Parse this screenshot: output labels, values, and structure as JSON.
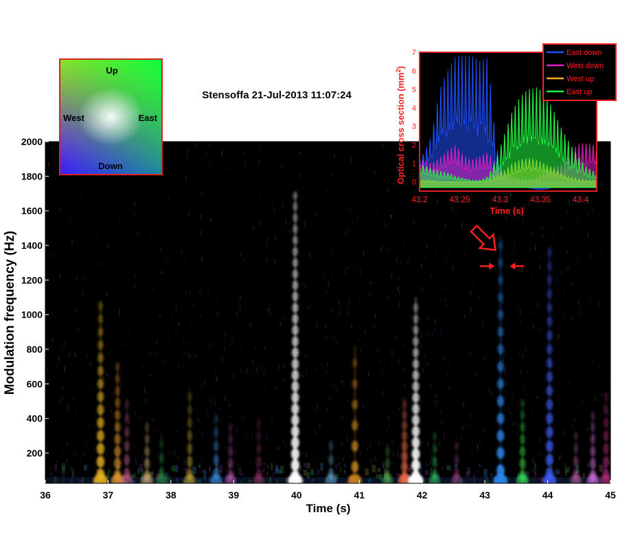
{
  "chart_data": [
    {
      "type": "heatmap",
      "title": "Stensoffa 21-Jul-2013 11:07:24",
      "xlabel": "Time (s)",
      "ylabel": "Modulation frequency (Hz)",
      "xlim": [
        36,
        45
      ],
      "ylim": [
        25,
        2000
      ],
      "xticks": [
        36,
        37,
        38,
        39,
        40,
        41,
        42,
        43,
        44,
        45
      ],
      "xtick_labels": [
        "36",
        "37",
        "38",
        "39",
        "40",
        "41",
        "42",
        "43",
        "44",
        "45"
      ],
      "yticks": [
        200,
        400,
        600,
        800,
        1000,
        1200,
        1400,
        1600,
        1800,
        2000
      ],
      "ytick_labels": [
        "200",
        "400",
        "600",
        "800",
        "1000",
        "1200",
        "1400",
        "1600",
        "1800",
        "2000"
      ],
      "background_color": "#000000",
      "features": [
        {
          "t": 36.88,
          "top": 1080,
          "color": "#e3b020",
          "i": 0.9,
          "harmonic": 75
        },
        {
          "t": 37.15,
          "top": 720,
          "color": "#f0a030",
          "i": 0.7,
          "harmonic": 70
        },
        {
          "t": 37.3,
          "top": 520,
          "color": "#e06aa0",
          "i": 0.5,
          "harmonic": 80
        },
        {
          "t": 37.62,
          "top": 380,
          "color": "#e0c080",
          "i": 0.55,
          "harmonic": 70
        },
        {
          "t": 37.85,
          "top": 320,
          "color": "#40d060",
          "i": 0.4,
          "harmonic": 85
        },
        {
          "t": 38.3,
          "top": 560,
          "color": "#f0d040",
          "i": 0.45,
          "harmonic": 75
        },
        {
          "t": 38.72,
          "top": 420,
          "color": "#40a0ff",
          "i": 0.55,
          "harmonic": 80
        },
        {
          "t": 38.95,
          "top": 360,
          "color": "#d060c0",
          "i": 0.45,
          "harmonic": 70
        },
        {
          "t": 39.4,
          "top": 380,
          "color": "#c04080",
          "i": 0.4,
          "harmonic": 75
        },
        {
          "t": 39.98,
          "top": 1700,
          "color": "#ffffff",
          "i": 0.95,
          "harmonic": 65
        },
        {
          "t": 40.55,
          "top": 280,
          "color": "#80d0ff",
          "i": 0.45,
          "harmonic": 80
        },
        {
          "t": 40.93,
          "top": 820,
          "color": "#f0a020",
          "i": 0.75,
          "harmonic": 120
        },
        {
          "t": 41.45,
          "top": 260,
          "color": "#60e060",
          "i": 0.4,
          "harmonic": 70
        },
        {
          "t": 41.72,
          "top": 520,
          "color": "#ff7050",
          "i": 0.7,
          "harmonic": 60
        },
        {
          "t": 41.9,
          "top": 1100,
          "color": "#ffffff",
          "i": 1.0,
          "harmonic": 65
        },
        {
          "t": 42.2,
          "top": 300,
          "color": "#40ff80",
          "i": 0.4,
          "harmonic": 75
        },
        {
          "t": 42.55,
          "top": 260,
          "color": "#e060c0",
          "i": 0.35,
          "harmonic": 80
        },
        {
          "t": 43.25,
          "top": 1450,
          "color": "#3090ff",
          "i": 0.85,
          "harmonic": 100
        },
        {
          "t": 43.6,
          "top": 500,
          "color": "#40ff60",
          "i": 0.55,
          "harmonic": 70
        },
        {
          "t": 44.03,
          "top": 1400,
          "color": "#4060ff",
          "i": 0.8,
          "harmonic": 80
        },
        {
          "t": 44.45,
          "top": 320,
          "color": "#e070c0",
          "i": 0.45,
          "harmonic": 75
        },
        {
          "t": 44.72,
          "top": 420,
          "color": "#f080ff",
          "i": 0.55,
          "harmonic": 70
        },
        {
          "t": 44.93,
          "top": 560,
          "color": "#c03080",
          "i": 0.6,
          "harmonic": 75
        }
      ],
      "annotations": [
        {
          "type": "arrow",
          "direction": "down-right",
          "at_t": 43.12,
          "at_f": 1390,
          "color": "#ff2020"
        },
        {
          "type": "arrow",
          "direction": "right",
          "at_t": 43.1,
          "at_f": 1280,
          "color": "#ff2020"
        },
        {
          "type": "arrow",
          "direction": "left",
          "at_t": 43.45,
          "at_f": 1280,
          "color": "#ff2020"
        }
      ]
    },
    {
      "type": "area",
      "title": "",
      "xlabel": "Time (s)",
      "ylabel": "Optical cross section (mm",
      "ylabel_superscript": "2",
      "ylabel_close": ")",
      "xlim": [
        43.2,
        43.42
      ],
      "ylim": [
        -0.5,
        7
      ],
      "xticks": [
        43.2,
        43.25,
        43.3,
        43.35,
        43.4
      ],
      "xtick_labels": [
        "43.2",
        "43.25",
        "43.3",
        "43.35",
        "43.4"
      ],
      "yticks": [
        0,
        1,
        2,
        3,
        4,
        5,
        6,
        7
      ],
      "ytick_labels": [
        "0",
        "1",
        "2",
        "3",
        "4",
        "5",
        "6",
        "7"
      ],
      "label_color": "#ff2020",
      "legend": "top-right",
      "series": [
        {
          "name": "East down",
          "color": "#2050ff",
          "x": [
            43.205,
            43.215,
            43.225,
            43.235,
            43.245,
            43.255,
            43.265,
            43.275,
            43.285,
            43.295,
            43.305,
            43.315,
            43.325,
            43.335,
            43.345,
            43.355,
            43.365,
            43.375,
            43.385,
            43.395,
            43.405,
            43.415
          ],
          "base": [
            0.8,
            1.2,
            2.2,
            2.3,
            2.6,
            2.7,
            2.5,
            2.3,
            2.0,
            0.8,
            0.1,
            0.0,
            0.0,
            0.0,
            -0.1,
            -0.1,
            0.0,
            0.0,
            0.0,
            0.0,
            0.0,
            0.0
          ],
          "peak": [
            1.5,
            2.5,
            5.0,
            6.0,
            6.8,
            6.8,
            6.8,
            6.5,
            6.7,
            2.0,
            0.3,
            0.0,
            0.2,
            0.2,
            0.1,
            0.0,
            0.0,
            0.0,
            0.0,
            0.0,
            0.0,
            0.0
          ]
        },
        {
          "name": "West down",
          "color": "#e020c0",
          "x": [
            43.205,
            43.215,
            43.225,
            43.235,
            43.245,
            43.255,
            43.265,
            43.275,
            43.285,
            43.295,
            43.305,
            43.315,
            43.325,
            43.335,
            43.345,
            43.355,
            43.365,
            43.375,
            43.385,
            43.395,
            43.405,
            43.415
          ],
          "base": [
            0.6,
            0.5,
            0.6,
            0.8,
            0.9,
            0.6,
            0.5,
            0.6,
            0.7,
            0.4,
            0.2,
            0.1,
            0.0,
            0.0,
            0.0,
            0.2,
            0.3,
            0.3,
            0.5,
            0.8,
            0.9,
            0.9
          ],
          "peak": [
            1.2,
            1.0,
            1.3,
            1.7,
            2.0,
            1.4,
            1.2,
            1.4,
            1.6,
            1.0,
            0.5,
            0.3,
            0.1,
            0.1,
            0.2,
            0.6,
            0.8,
            0.9,
            1.3,
            2.0,
            2.1,
            2.0
          ]
        },
        {
          "name": "West up",
          "color": "#ffb020",
          "x": [
            43.205,
            43.215,
            43.225,
            43.235,
            43.245,
            43.255,
            43.265,
            43.275,
            43.285,
            43.295,
            43.305,
            43.315,
            43.325,
            43.335,
            43.345,
            43.355,
            43.365,
            43.375,
            43.385,
            43.395,
            43.405,
            43.415
          ],
          "base": [
            0.0,
            0.0,
            0.0,
            0.0,
            0.0,
            0.0,
            0.0,
            0.0,
            0.0,
            0.1,
            0.2,
            0.4,
            0.5,
            0.6,
            0.6,
            0.5,
            0.4,
            0.2,
            0.1,
            0.0,
            0.0,
            0.0
          ],
          "peak": [
            0.1,
            0.1,
            0.0,
            0.0,
            0.0,
            0.0,
            0.0,
            0.0,
            0.1,
            0.4,
            0.6,
            1.0,
            1.2,
            1.3,
            1.2,
            1.0,
            0.8,
            0.5,
            0.3,
            0.2,
            0.1,
            0.1
          ]
        },
        {
          "name": "East up",
          "color": "#20ff40",
          "x": [
            43.205,
            43.215,
            43.225,
            43.235,
            43.245,
            43.255,
            43.265,
            43.275,
            43.285,
            43.295,
            43.305,
            43.315,
            43.325,
            43.335,
            43.345,
            43.355,
            43.365,
            43.375,
            43.385,
            43.395,
            43.405,
            43.415
          ],
          "base": [
            0.4,
            0.3,
            0.2,
            0.2,
            0.1,
            0.1,
            0.0,
            0.0,
            0.1,
            0.4,
            0.9,
            1.4,
            1.8,
            2.0,
            2.1,
            1.9,
            1.6,
            1.2,
            0.8,
            0.5,
            0.3,
            0.2
          ],
          "peak": [
            0.9,
            0.7,
            0.6,
            0.5,
            0.3,
            0.2,
            0.1,
            0.1,
            0.3,
            1.2,
            2.5,
            3.8,
            4.6,
            5.0,
            5.1,
            4.8,
            4.0,
            3.0,
            2.2,
            1.5,
            0.9,
            0.6
          ]
        }
      ]
    }
  ],
  "direction_legend": {
    "labels": {
      "up": "Up",
      "down": "Down",
      "west": "West",
      "east": "East"
    },
    "colors": {
      "up": "#ffee00",
      "east": "#ffffff",
      "west": "#ff2020",
      "down": "#2020ff",
      "up_east": "#00ff40",
      "down_west": "#ff00ff"
    },
    "border_color": "#e02020"
  }
}
